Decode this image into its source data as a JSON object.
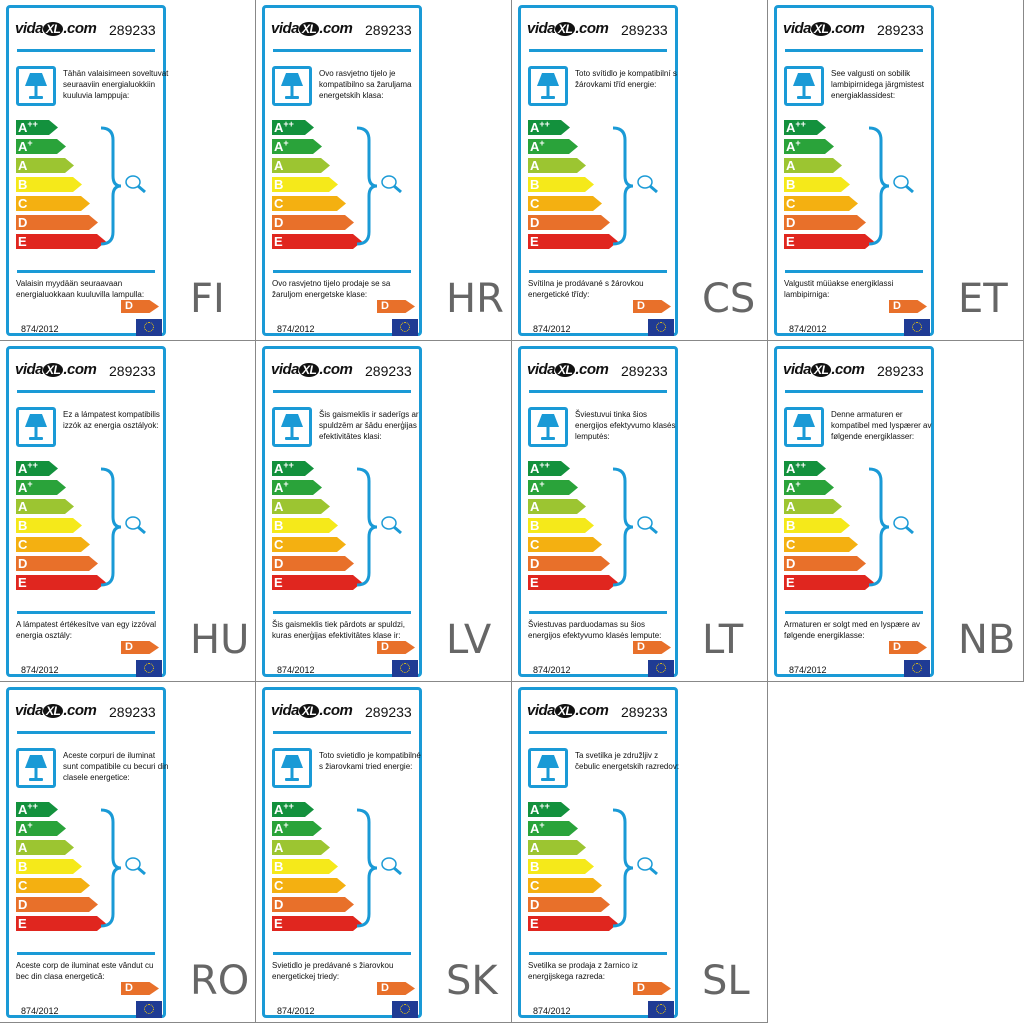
{
  "brand": "vidaXL.com",
  "product_number": "289233",
  "regulation": "874/2012",
  "selected_class": "D",
  "accent_color": "#1a9ad6",
  "classes": [
    {
      "label": "A",
      "sup": "++",
      "color": "#13913d"
    },
    {
      "label": "A",
      "sup": "+",
      "color": "#2aa33a"
    },
    {
      "label": "A",
      "sup": "",
      "color": "#9cc531"
    },
    {
      "label": "B",
      "sup": "",
      "color": "#f5e91a"
    },
    {
      "label": "C",
      "sup": "",
      "color": "#f4b011"
    },
    {
      "label": "D",
      "sup": "",
      "color": "#e8702a"
    },
    {
      "label": "E",
      "sup": "",
      "color": "#e0261f"
    }
  ],
  "panels": [
    {
      "code": "FI",
      "top_text": "Tähän valaisimeen soveltuvat seuraaviin energialuokkiin kuuluvia lamppuja:",
      "bottom_text": "Valaisin myydään seuraavaan energialuokkaan kuuluvilla lampulla:"
    },
    {
      "code": "HR",
      "top_text": "Ovo rasvjetno tijelo je kompatibilno sa žaruljama energetskih klasa:",
      "bottom_text": "Ovo rasvjetno tijelo prodaje se sa žaruljom energetske klase:"
    },
    {
      "code": "CS",
      "top_text": "Toto svítidlo je kompatibilní s žárovkami tříd energie:",
      "bottom_text": "Svítilna je prodávané s žárovkou energetické třídy:"
    },
    {
      "code": "ET",
      "top_text": "See valgusti on sobilik lambipirnidega järgmistest energiaklassidest:",
      "bottom_text": "Valgustit müüakse energiklassi lambipirniga:"
    },
    {
      "code": "HU",
      "top_text": "Ez a lámpatest kompatibilis izzók az energia osztályok:",
      "bottom_text": "A lámpatest értékesítve van egy izzóval energia osztály:"
    },
    {
      "code": "LV",
      "top_text": "Šis gaismeklis ir saderīgs ar spuldzēm ar šādu enerģijas efektivitātes klasi:",
      "bottom_text": "Šis gaismeklis tiek pārdots ar spuldzi, kuras enerģijas efektivitātes klase ir:"
    },
    {
      "code": "LT",
      "top_text": "Šviestuvui tinka šios energijos efektyvumo klasės lemputės:",
      "bottom_text": "Šviestuvas parduodamas su šios energijos efektyvumo klasės lempute:"
    },
    {
      "code": "NB",
      "top_text": "Denne armaturen er kompatibel med lyspærer av følgende energiklasser:",
      "bottom_text": "Armaturen er solgt med en lyspære av følgende energiklasse:"
    },
    {
      "code": "RO",
      "top_text": "Aceste corpuri de iluminat sunt compatibile cu becuri din clasele energetice:",
      "bottom_text": "Aceste corp de iluminat este vândut cu bec din clasa energetică:"
    },
    {
      "code": "SK",
      "top_text": "Toto svietidlo je kompatibilné s žiarovkami tried energie:",
      "bottom_text": "Svietidlo je predávané s žiarovkou energetickej triedy:"
    },
    {
      "code": "SL",
      "top_text": "Ta svetilka je združljiv z čebulic energetskih razredov:",
      "bottom_text": "Svetilka se prodaja z žarnico iz energijskega razreda:"
    }
  ]
}
